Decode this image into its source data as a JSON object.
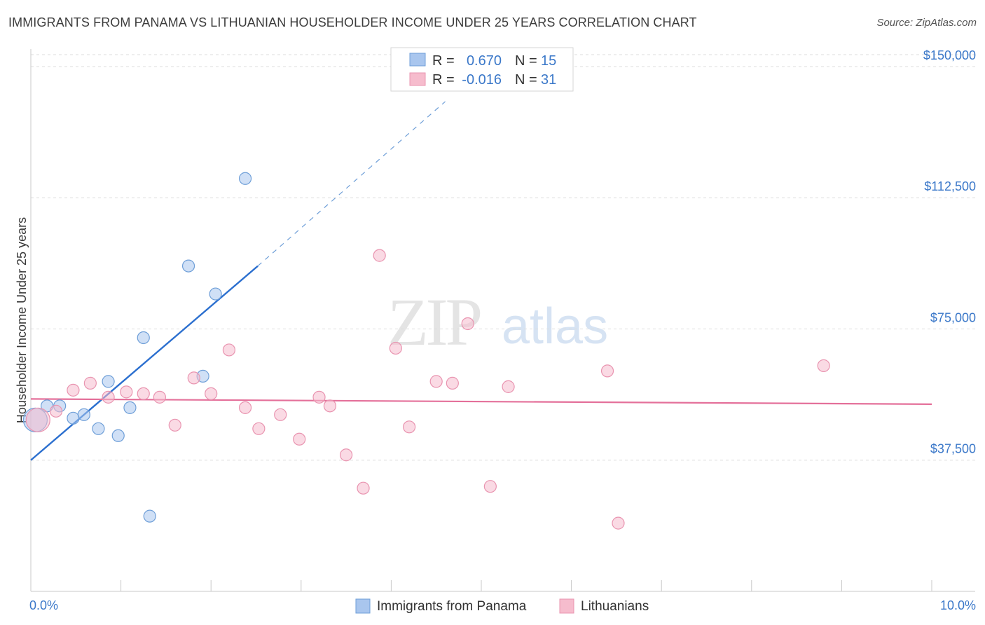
{
  "title": "IMMIGRANTS FROM PANAMA VS LITHUANIAN HOUSEHOLDER INCOME UNDER 25 YEARS CORRELATION CHART",
  "source": "Source: ZipAtlas.com",
  "watermark": {
    "zip": "ZIP",
    "atlas": "atlas"
  },
  "colors": {
    "blue_fill": "#a9c6ee",
    "blue_stroke": "#6f9fd8",
    "blue_line": "#2b6fcf",
    "pink_fill": "#f6bccd",
    "pink_stroke": "#e994b0",
    "pink_line": "#e4709a",
    "tick_text": "#3b78c9",
    "grid": "#dcdcdc"
  },
  "legend": {
    "rows": [
      {
        "r_label": "R =",
        "r_value": "0.670",
        "n_label": "N =",
        "n_value": "15"
      },
      {
        "r_label": "R =",
        "r_value": "-0.016",
        "n_label": "N =",
        "n_value": "31"
      }
    ]
  },
  "bottom_legend": [
    "Immigrants from Panama",
    "Lithuanians"
  ],
  "chart_data": {
    "type": "scatter",
    "title": "IMMIGRANTS FROM PANAMA VS LITHUANIAN HOUSEHOLDER INCOME UNDER 25 YEARS CORRELATION CHART",
    "xlabel": "",
    "ylabel": "Householder Income Under 25 years",
    "xlim": [
      0,
      10
    ],
    "ylim": [
      0,
      155000
    ],
    "x_tick_labels": [
      "0.0%",
      "10.0%"
    ],
    "y_ticks": [
      37500,
      75000,
      112500,
      150000
    ],
    "y_tick_labels": [
      "$37,500",
      "$75,000",
      "$112,500",
      "$150,000"
    ],
    "series": [
      {
        "name": "Immigrants from Panama",
        "color": "blue",
        "points": [
          {
            "x": 0.05,
            "y": 49000,
            "size": "large"
          },
          {
            "x": 0.18,
            "y": 53000
          },
          {
            "x": 0.32,
            "y": 53000
          },
          {
            "x": 0.47,
            "y": 49500
          },
          {
            "x": 0.59,
            "y": 50500
          },
          {
            "x": 0.75,
            "y": 46500
          },
          {
            "x": 0.86,
            "y": 60000
          },
          {
            "x": 0.97,
            "y": 44500
          },
          {
            "x": 1.1,
            "y": 52500
          },
          {
            "x": 1.25,
            "y": 72500
          },
          {
            "x": 1.32,
            "y": 21500
          },
          {
            "x": 1.75,
            "y": 93000
          },
          {
            "x": 1.91,
            "y": 61500
          },
          {
            "x": 2.05,
            "y": 85000
          },
          {
            "x": 2.38,
            "y": 118000
          }
        ],
        "trend": {
          "x0": 0.0,
          "y0": 37500,
          "x1": 2.52,
          "y1": 93000,
          "dash_to_x": 4.6,
          "dash_to_y": 140000
        }
      },
      {
        "name": "Lithuanians",
        "color": "pink",
        "points": [
          {
            "x": 0.08,
            "y": 49000,
            "size": "large"
          },
          {
            "x": 0.28,
            "y": 51500
          },
          {
            "x": 0.47,
            "y": 57500
          },
          {
            "x": 0.66,
            "y": 59500
          },
          {
            "x": 0.86,
            "y": 55500
          },
          {
            "x": 1.06,
            "y": 57000
          },
          {
            "x": 1.25,
            "y": 56500
          },
          {
            "x": 1.43,
            "y": 55500
          },
          {
            "x": 1.6,
            "y": 47500
          },
          {
            "x": 1.81,
            "y": 61000
          },
          {
            "x": 2.0,
            "y": 56500
          },
          {
            "x": 2.2,
            "y": 69000
          },
          {
            "x": 2.38,
            "y": 52500
          },
          {
            "x": 2.53,
            "y": 46500
          },
          {
            "x": 2.77,
            "y": 50500
          },
          {
            "x": 2.98,
            "y": 43500
          },
          {
            "x": 3.2,
            "y": 55500
          },
          {
            "x": 3.32,
            "y": 53000
          },
          {
            "x": 3.5,
            "y": 39000
          },
          {
            "x": 3.69,
            "y": 29500
          },
          {
            "x": 3.87,
            "y": 96000
          },
          {
            "x": 4.05,
            "y": 69500
          },
          {
            "x": 4.2,
            "y": 47000
          },
          {
            "x": 4.5,
            "y": 60000
          },
          {
            "x": 4.68,
            "y": 59500
          },
          {
            "x": 4.85,
            "y": 76500
          },
          {
            "x": 5.1,
            "y": 30000
          },
          {
            "x": 5.3,
            "y": 58500
          },
          {
            "x": 6.4,
            "y": 63000
          },
          {
            "x": 6.52,
            "y": 19500
          },
          {
            "x": 8.8,
            "y": 64500
          }
        ],
        "trend": {
          "x0": 0.0,
          "y0": 55000,
          "x1": 10.0,
          "y1": 53500
        }
      }
    ]
  }
}
